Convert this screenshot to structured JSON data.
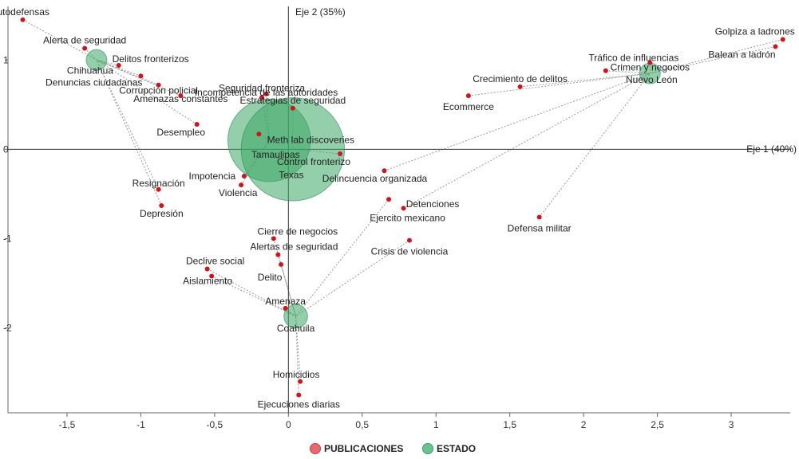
{
  "chart_data": {
    "type": "scatter",
    "title": "",
    "xlabel": "Eje 1 (40%)",
    "ylabel": "Eje 2 (35%)",
    "xlim": [
      -1.9,
      3.4
    ],
    "ylim": [
      -2.95,
      1.6
    ],
    "x_ticks": [
      -1.5,
      -1,
      -0.5,
      0,
      0.5,
      1,
      1.5,
      2,
      2.5,
      3
    ],
    "x_tick_labels": [
      "-1,5",
      "-1",
      "-0,5",
      "0",
      "0,5",
      "1",
      "1,5",
      "2",
      "2,5",
      "3"
    ],
    "y_ticks": [
      1,
      0,
      -1,
      -2
    ],
    "y_tick_labels": [
      "1",
      "0",
      "-1",
      "-2"
    ],
    "grid": false,
    "legend": {
      "position": "bottom-center",
      "entries": [
        {
          "name": "PUBLICACIONES",
          "color": "#e0454a"
        },
        {
          "name": "ESTADO",
          "color": "#4cb87a"
        }
      ]
    },
    "colors": {
      "publicaciones": "#d0141c",
      "estado": "#3aa865"
    },
    "estados": [
      {
        "label": "Chihuahua",
        "x": -1.3,
        "y": 1.0,
        "size": 0.07
      },
      {
        "label": "Nuevo León",
        "x": 2.45,
        "y": 0.85,
        "size": 0.07
      },
      {
        "label": "Coahuila",
        "x": 0.05,
        "y": -1.87,
        "size": 0.08
      },
      {
        "label": "Tamaulipas",
        "x": -0.13,
        "y": 0.1,
        "size": 0.28
      },
      {
        "label": "Texas",
        "x": 0.03,
        "y": 0.0,
        "size": 0.35
      }
    ],
    "publicaciones": [
      {
        "label": "Autodefensas",
        "x": -1.8,
        "y": 1.45,
        "estado": "Chihuahua"
      },
      {
        "label": "Alerta de seguridad",
        "x": -1.38,
        "y": 1.13,
        "estado": "Chihuahua"
      },
      {
        "label": "Delitos fronterizos",
        "x": -1.15,
        "y": 0.94,
        "estado": "Chihuahua"
      },
      {
        "label": "Denuncias ciudadanas",
        "x": -1.0,
        "y": 0.82,
        "estado": "Chihuahua"
      },
      {
        "label": "Corrupción policial",
        "x": -0.88,
        "y": 0.72,
        "estado": "Chihuahua"
      },
      {
        "label": "Amenazas constantes",
        "x": -0.73,
        "y": 0.6,
        "estado": "Chihuahua"
      },
      {
        "label": "Desempleo",
        "x": -0.62,
        "y": 0.28,
        "estado": "Chihuahua"
      },
      {
        "label": "Resignación",
        "x": -0.88,
        "y": -0.45,
        "estado": "Chihuahua"
      },
      {
        "label": "Depresión",
        "x": -0.86,
        "y": -0.63,
        "estado": "Chihuahua"
      },
      {
        "label": "Seguridad fronteriza",
        "x": -0.18,
        "y": 0.58,
        "estado": "Tamaulipas"
      },
      {
        "label": "Incompetencia de las autoridades",
        "x": -0.15,
        "y": 0.62,
        "estado": "Tamaulipas"
      },
      {
        "label": "Estrategias de seguridad",
        "x": 0.03,
        "y": 0.46,
        "estado": "Texas"
      },
      {
        "label": "Meth lab discoveries",
        "x": -0.2,
        "y": 0.17,
        "estado": "Tamaulipas"
      },
      {
        "label": "Control fronterizo",
        "x": 0.35,
        "y": -0.05,
        "estado": "Texas"
      },
      {
        "label": "Impotencia",
        "x": -0.3,
        "y": -0.3,
        "estado": "Tamaulipas"
      },
      {
        "label": "Violencia",
        "x": -0.32,
        "y": -0.4,
        "estado": "Tamaulipas"
      },
      {
        "label": "Delincuencia organizada",
        "x": 0.65,
        "y": -0.24,
        "estado": "Nuevo León"
      },
      {
        "label": "Ejercito mexicano",
        "x": 0.78,
        "y": -0.66,
        "estado": "Nuevo León"
      },
      {
        "label": "Detenciones",
        "x": 0.68,
        "y": -0.56,
        "estado": "Coahuila"
      },
      {
        "label": "Crisis de violencia",
        "x": 0.82,
        "y": -1.02,
        "estado": "Coahuila"
      },
      {
        "label": "Defensa militar",
        "x": 1.7,
        "y": -0.76,
        "estado": "Nuevo León"
      },
      {
        "label": "Ecommerce",
        "x": 1.22,
        "y": 0.6,
        "estado": "Nuevo León"
      },
      {
        "label": "Crecimiento de delitos",
        "x": 1.57,
        "y": 0.7,
        "estado": "Nuevo León"
      },
      {
        "label": "Tráfico de influencias",
        "x": 2.15,
        "y": 0.88,
        "estado": "Nuevo León"
      },
      {
        "label": "Crimen y negocios",
        "x": 2.45,
        "y": 0.97,
        "estado": "Nuevo León"
      },
      {
        "label": "Golpiza a ladrones",
        "x": 3.35,
        "y": 1.23,
        "estado": "Nuevo León"
      },
      {
        "label": "Balean a ladrón",
        "x": 3.3,
        "y": 1.15,
        "estado": "Nuevo León"
      },
      {
        "label": "Cierre de negocios",
        "x": -0.1,
        "y": -1.0,
        "estado": "Coahuila"
      },
      {
        "label": "Alertas de seguridad",
        "x": -0.07,
        "y": -1.18,
        "estado": "Coahuila"
      },
      {
        "label": "Delito",
        "x": -0.05,
        "y": -1.29,
        "estado": "Coahuila"
      },
      {
        "label": "Declive social",
        "x": -0.55,
        "y": -1.34,
        "estado": "Coahuila"
      },
      {
        "label": "Aislamiento",
        "x": -0.52,
        "y": -1.42,
        "estado": "Coahuila"
      },
      {
        "label": "Amenaza",
        "x": -0.02,
        "y": -1.78,
        "estado": "Coahuila"
      },
      {
        "label": "Homicidios",
        "x": 0.08,
        "y": -2.6,
        "estado": "Coahuila"
      },
      {
        "label": "Ejecuciones diarias",
        "x": 0.07,
        "y": -2.75,
        "estado": "Coahuila"
      }
    ]
  }
}
